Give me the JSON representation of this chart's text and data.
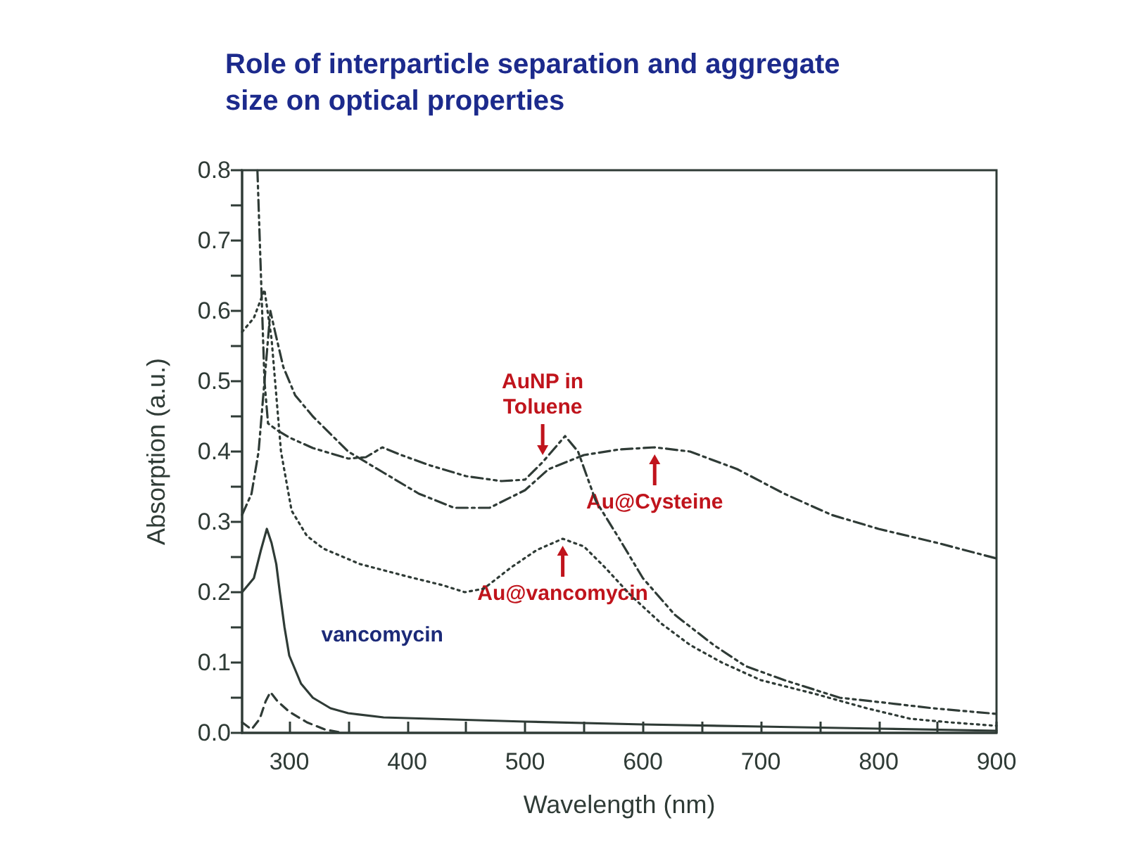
{
  "chart_data": {
    "type": "line",
    "title": "Role of interparticle separation and aggregate size on optical properties",
    "xlabel": "Wavelength (nm)",
    "ylabel": "Absorption (a.u.)",
    "xlim": [
      260,
      900
    ],
    "xticks": [
      300,
      {
        "value": 350,
        "label": null
      },
      400,
      {
        "value": 450,
        "label": null
      },
      500,
      {
        "value": 550,
        "label": null
      },
      600,
      {
        "value": 650,
        "label": null
      },
      700,
      {
        "value": 750,
        "label": null
      },
      800,
      {
        "value": 850,
        "label": null
      },
      900
    ],
    "ylim": [
      0,
      0.8
    ],
    "yticks": [
      {
        "value": 0,
        "label": "0.0"
      },
      {
        "value": 0.05,
        "label": null
      },
      0.1,
      {
        "value": 0.15,
        "label": null
      },
      0.2,
      {
        "value": 0.25,
        "label": null
      },
      0.3,
      {
        "value": 0.35,
        "label": null
      },
      0.4,
      {
        "value": 0.45,
        "label": null
      },
      0.5,
      {
        "value": 0.55,
        "label": null
      },
      0.6,
      {
        "value": 0.65,
        "label": null
      },
      0.7,
      {
        "value": 0.75,
        "label": null
      },
      0.8
    ],
    "grid": false,
    "legend": false,
    "series": [
      {
        "name": "vancomycin",
        "color": "#2f3b36",
        "line_style": "solid",
        "x": [
          260,
          270,
          276,
          281,
          285,
          289,
          292,
          296,
          300,
          310,
          320,
          335,
          350,
          380,
          420,
          500,
          600,
          700,
          800,
          900
        ],
        "values": [
          0.2,
          0.22,
          0.26,
          0.29,
          0.27,
          0.24,
          0.2,
          0.15,
          0.11,
          0.07,
          0.05,
          0.035,
          0.028,
          0.022,
          0.02,
          0.016,
          0.012,
          0.009,
          0.006,
          0.003
        ]
      },
      {
        "color": "#2f3b36",
        "line_style": "dashed",
        "x": [
          260,
          268,
          275,
          280,
          284,
          290,
          300,
          315,
          330,
          345
        ],
        "values": [
          0.015,
          0.005,
          0.02,
          0.045,
          0.058,
          0.045,
          0.03,
          0.015,
          0.005,
          0.0
        ]
      },
      {
        "color": "#2f3b36",
        "line_style": "dotted",
        "x": [
          260,
          270,
          279,
          285,
          293,
          302,
          315,
          329,
          360,
          401,
          430,
          449,
          465,
          488,
          510,
          532,
          550,
          568,
          590,
          616,
          640,
          667,
          700,
          747,
          790,
          827,
          860,
          900
        ],
        "values": [
          0.57,
          0.59,
          0.63,
          0.56,
          0.4,
          0.316,
          0.28,
          0.262,
          0.24,
          0.222,
          0.21,
          0.2,
          0.205,
          0.235,
          0.26,
          0.276,
          0.265,
          0.235,
          0.195,
          0.155,
          0.125,
          0.1,
          0.075,
          0.055,
          0.035,
          0.02,
          0.015,
          0.01
        ]
      },
      {
        "color": "#2f3b36",
        "line_style": "dashdotdot",
        "x": [
          273,
          276,
          279,
          282,
          290,
          300,
          320,
          350,
          365,
          379,
          395,
          420,
          450,
          480,
          500,
          515,
          534,
          545,
          560,
          580,
          600,
          627,
          660,
          687,
          720,
          767,
          810,
          846,
          900
        ],
        "values": [
          0.8,
          0.65,
          0.5,
          0.44,
          0.43,
          0.42,
          0.405,
          0.39,
          0.392,
          0.406,
          0.395,
          0.38,
          0.365,
          0.358,
          0.36,
          0.385,
          0.422,
          0.4,
          0.33,
          0.276,
          0.22,
          0.168,
          0.125,
          0.095,
          0.075,
          0.05,
          0.042,
          0.035,
          0.027
        ]
      },
      {
        "color": "#2f3b36",
        "line_style": "dashdot",
        "x": [
          260,
          268,
          274,
          279,
          284,
          288,
          295,
          305,
          320,
          350,
          380,
          410,
          440,
          470,
          500,
          520,
          550,
          580,
          610,
          640,
          680,
          720,
          760,
          800,
          850,
          900
        ],
        "values": [
          0.31,
          0.34,
          0.4,
          0.5,
          0.6,
          0.57,
          0.52,
          0.48,
          0.45,
          0.4,
          0.37,
          0.34,
          0.32,
          0.32,
          0.345,
          0.375,
          0.395,
          0.403,
          0.406,
          0.4,
          0.375,
          0.34,
          0.31,
          0.29,
          0.27,
          0.248
        ]
      }
    ],
    "annotations": [
      {
        "text": "AuNP in\nToluene",
        "x": 515,
        "y": 0.385
      },
      {
        "text": "Au@Cysteine",
        "x": 610,
        "y": 0.406
      },
      {
        "text": "Au@vancomycin",
        "x": 532,
        "y": 0.276
      }
    ]
  }
}
